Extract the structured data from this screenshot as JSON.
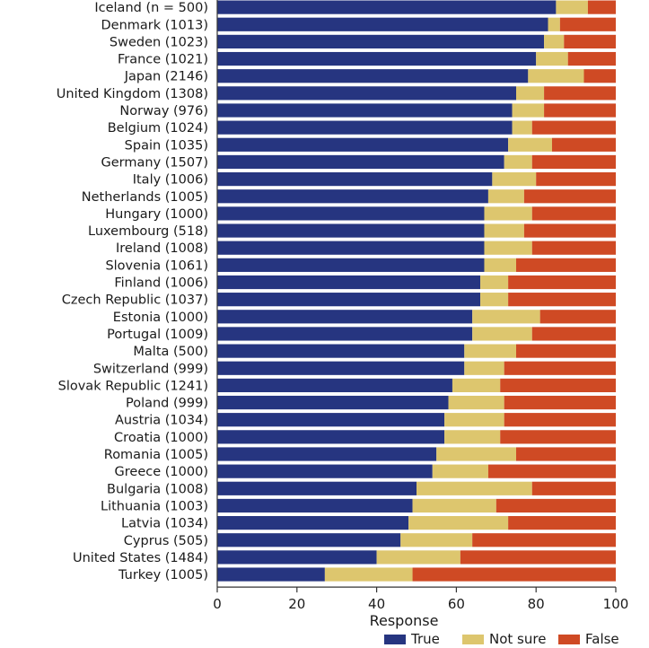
{
  "chart_data": {
    "type": "bar",
    "stacked": true,
    "orientation": "horizontal",
    "xlabel": "Response",
    "xlim": [
      0,
      100
    ],
    "xticks": [
      "0",
      "20",
      "40",
      "60",
      "80",
      "100"
    ],
    "legend_position": "bottom-right",
    "categories": [
      "Iceland (n = 500)",
      "Denmark (1013)",
      "Sweden (1023)",
      "France (1021)",
      "Japan (2146)",
      "United Kingdom (1308)",
      "Norway (976)",
      "Belgium (1024)",
      "Spain (1035)",
      "Germany (1507)",
      "Italy (1006)",
      "Netherlands (1005)",
      "Hungary (1000)",
      "Luxembourg (518)",
      "Ireland (1008)",
      "Slovenia (1061)",
      "Finland (1006)",
      "Czech Republic (1037)",
      "Estonia (1000)",
      "Portugal (1009)",
      "Malta (500)",
      "Switzerland (999)",
      "Slovak Republic (1241)",
      "Poland (999)",
      "Austria (1034)",
      "Croatia (1000)",
      "Romania (1005)",
      "Greece (1000)",
      "Bulgaria (1008)",
      "Lithuania (1003)",
      "Latvia (1034)",
      "Cyprus (505)",
      "United States (1484)",
      "Turkey (1005)"
    ],
    "series": [
      {
        "name": "True",
        "color": "#263580",
        "values": [
          85,
          83,
          82,
          80,
          78,
          75,
          74,
          74,
          73,
          72,
          69,
          68,
          67,
          67,
          67,
          67,
          66,
          66,
          64,
          64,
          62,
          62,
          59,
          58,
          57,
          57,
          55,
          54,
          50,
          49,
          48,
          46,
          40,
          27
        ]
      },
      {
        "name": "Not sure",
        "color": "#ddc66e",
        "values": [
          8,
          3,
          5,
          8,
          14,
          7,
          8,
          5,
          11,
          7,
          11,
          9,
          12,
          10,
          12,
          8,
          7,
          7,
          17,
          15,
          13,
          10,
          12,
          14,
          15,
          14,
          20,
          14,
          29,
          21,
          25,
          18,
          21,
          22
        ]
      },
      {
        "name": "False",
        "color": "#cf4a24",
        "values": [
          7,
          14,
          13,
          12,
          8,
          18,
          18,
          21,
          16,
          21,
          20,
          23,
          21,
          23,
          21,
          25,
          27,
          27,
          19,
          21,
          25,
          28,
          29,
          28,
          28,
          29,
          25,
          32,
          21,
          30,
          27,
          36,
          39,
          51
        ]
      }
    ]
  }
}
